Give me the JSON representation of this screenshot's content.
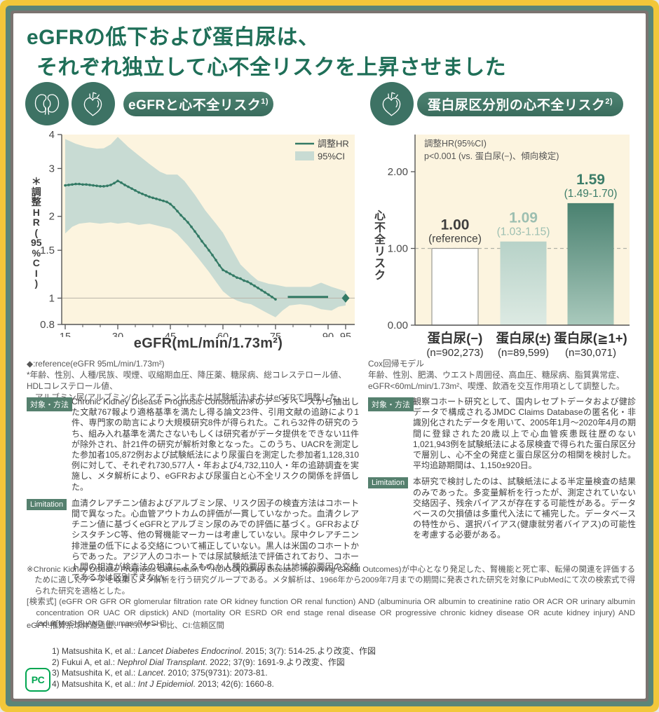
{
  "frame": {
    "yellow": "#f2c73a",
    "green": "#5b8578",
    "gray": "#7b7370",
    "background": "#ffffff"
  },
  "title": {
    "line1": "eGFRの低下および蛋白尿は、",
    "line2": "それぞれ独立して心不全リスクを上昇させました",
    "color": "#1f6f58"
  },
  "left_panel": {
    "badge_label": "eGFRと心不全リスク",
    "badge_sup": "1)",
    "footnote_lines": [
      "◆:reference(eGFR 95mL/min/1.73m²)",
      "*年齢、性別、人種/民族、喫煙、収縮期血圧、降圧薬、糖尿病、総コレステロール値、HDLコレステロール値、",
      "　アルブミン尿(アルブミン/クレアチニン比または試験紙法)またはeGFRで調整した。"
    ],
    "method_label": "対象・方法",
    "method_text": "Chronic Kidney Disease Prognosis Consortium※のデータベースから抽出した文献767報より適格基準を満たし得る論文23件、引用文献の追跡により1件、専門家の助言により大規模研究8件が得られた。これら32件の研究のうち、組み入れ基準を満たさないもしくは研究者がデータ提供をできない11件が除外され、計21件の研究が解析対象となった。このうち、UACRを測定した参加者105,872例および試験紙法により尿蛋白を測定した参加者1,128,310例に対して、それぞれ730,577人・年および4,732,110人・年の追跡調査を実施し、メタ解析により、eGFRおよび尿蛋白と心不全リスクの関係を評価した。",
    "limitation_label": "Limitation",
    "limitation_text": "血清クレアチニン値およびアルブミン尿、リスク因子の検査方法はコホート間で異なった。心血管アウトカムの評価が一貫していなかった。血清クレアチニン値に基づくeGFRとアルブミン尿のみでの評価に基づく。GFRおよびシスタチンC等、他の腎機能マーカーは考慮していない。尿中クレアチニン排泄量の低下による交絡について補正していない。黒人は米国のコホートからであった。アジア人のコホートでは尿試験紙法で評価されており、コホート間の相違が検査法の相違によるものか人種的要因または地域的要因の交絡であるかは区別できない。"
  },
  "right_panel": {
    "badge_label": "蛋白尿区分別の心不全リスク",
    "badge_sup": "2)",
    "footnote_lines": [
      "Cox回帰モデル",
      "年齢、性別、肥満、ウエスト周囲径、高血圧、糖尿病、脂質異常症、",
      "eGFR<60mL/min/1.73m²、喫煙、飲酒を交互作用項として調整した。"
    ],
    "method_label": "対象・方法",
    "method_text": "観察コホート研究として、国内レセプトデータおよび健診データで構成されるJMDC Claims Databaseの匿名化・非識別化されたデータを用いて、2005年1月〜2020年4月の期間に登録された20歳以上で心血管疾患既往歴のない1,021,943例を試験紙法による尿検査で得られた蛋白尿区分で層別し、心不全の発症と蛋白尿区分の相関を検討した。平均追跡期間は、1,150±920日。",
    "limitation_label": "Limitation",
    "limitation_text": "本研究で検討したのは、試験紙法による半定量検査の結果のみであった。多変量解析を行ったが、測定されていない交絡因子、残余バイアスが存在する可能性がある。データベースの欠損値は多重代入法にて補完した。データベースの特性から、選択バイアス(健康就労者バイアス)の可能性を考慮する必要がある。"
  },
  "notes": {
    "consortium_pre": "※Chronic Kidney Disease Prognosis Consortium",
    "consortium_sup": "3),4)",
    "consortium_post": ":KDIGO(Kidney Disease: Improving Global Outcomes)が中心となり発足した、腎機能と死亡率、転帰の関連を評価するために適したデータを収集しメタ解析を行う研究グループである。メタ解析は、1966年から2009年7月までの期間に発表された研究を対象にPubMedにて次の検索式で得られた研究を適格とした。",
    "search_formula": "[検索式] (eGFR OR GFR OR glomerular filtration rate OR kidney function OR renal function) AND (albuminuria OR albumin to creatinine ratio OR ACR OR urinary albumin concentration OR UAC OR dipstick) AND (mortality OR ESRD OR end stage renal disease OR progressive chronic kidney disease OR acute kidney injury) AND (adult[MeSH]) AND (Humans[MeSH])",
    "abbreviations": "eGFR:推算糸球体濾過量、HR:ハザード比、CI:信頼区間"
  },
  "references": [
    {
      "pre": "1) Matsushita K, et al.: ",
      "journal": "Lancet Diabetes Endocrinol",
      "post": ". 2015; 3(7): 514-25.より改変、作図"
    },
    {
      "pre": "2) Fukui A, et al.: ",
      "journal": "Nephrol Dial Transplant",
      "post": ". 2022; 37(9): 1691-9.より改変、作図"
    },
    {
      "pre": "3) Matsushita K, et al.: ",
      "journal": "Lancet",
      "post": ". 2010; 375(9731): 2073-81."
    },
    {
      "pre": "4) Matsushita K, et al.: ",
      "journal": "Int J Epidemiol",
      "post": ". 2013; 42(6): 1660-8."
    }
  ],
  "logo_text": "PC",
  "chart_data": [
    {
      "type": "line",
      "title": "eGFRと心不全リスク",
      "xlabel": "eGFR(mL/min/1.73m²)",
      "ylabel": "＊調整HR（95%CI）",
      "ylabel_chars": [
        "＊",
        "調",
        "整",
        "H",
        "R",
        "(",
        "95",
        "%",
        "C",
        "I",
        ")"
      ],
      "x_scale": "linear",
      "y_scale": "log",
      "xlim": [
        14,
        97.5
      ],
      "ylim": [
        0.8,
        4
      ],
      "xticks": [
        15,
        30,
        45,
        60,
        75,
        90,
        95
      ],
      "xticks_minor": [
        20,
        25,
        35,
        40,
        50,
        55,
        65,
        70,
        80,
        85
      ],
      "yticks": [
        0.8,
        1,
        1.5,
        2,
        3,
        4
      ],
      "legend": [
        {
          "label": "調整HR",
          "type": "line"
        },
        {
          "label": "95%CI",
          "type": "band"
        }
      ],
      "reference_line_y": 1,
      "series": [
        {
          "name": "調整HR",
          "points": [
            [
              15,
              2.6
            ],
            [
              16,
              2.61
            ],
            [
              17,
              2.62
            ],
            [
              18,
              2.63
            ],
            [
              19,
              2.63
            ],
            [
              20,
              2.62
            ],
            [
              21,
              2.62
            ],
            [
              22,
              2.61
            ],
            [
              23,
              2.6
            ],
            [
              24,
              2.59
            ],
            [
              25,
              2.58
            ],
            [
              26,
              2.58
            ],
            [
              27,
              2.59
            ],
            [
              28,
              2.61
            ],
            [
              29,
              2.65
            ],
            [
              30,
              2.7
            ],
            [
              31,
              2.66
            ],
            [
              32,
              2.61
            ],
            [
              33,
              2.57
            ],
            [
              34,
              2.53
            ],
            [
              35,
              2.49
            ],
            [
              36,
              2.45
            ],
            [
              37,
              2.42
            ],
            [
              38,
              2.39
            ],
            [
              39,
              2.36
            ],
            [
              40,
              2.34
            ],
            [
              41,
              2.32
            ],
            [
              42,
              2.3
            ],
            [
              43,
              2.28
            ],
            [
              44,
              2.26
            ],
            [
              45,
              2.22
            ],
            [
              46,
              2.16
            ],
            [
              47,
              2.09
            ],
            [
              48,
              2.02
            ],
            [
              49,
              1.96
            ],
            [
              50,
              1.9
            ],
            [
              51,
              1.83
            ],
            [
              52,
              1.76
            ],
            [
              53,
              1.69
            ],
            [
              54,
              1.62
            ],
            [
              55,
              1.56
            ],
            [
              56,
              1.5
            ],
            [
              57,
              1.44
            ],
            [
              58,
              1.38
            ],
            [
              59,
              1.32
            ],
            [
              60,
              1.27
            ],
            [
              61,
              1.25
            ],
            [
              62,
              1.23
            ],
            [
              63,
              1.21
            ],
            [
              64,
              1.19
            ],
            [
              65,
              1.18
            ],
            [
              66,
              1.16
            ],
            [
              67,
              1.15
            ],
            [
              68,
              1.13
            ],
            [
              69,
              1.11
            ],
            [
              70,
              1.09
            ],
            [
              71,
              1.07
            ],
            [
              72,
              1.05
            ],
            [
              73,
              1.03
            ],
            [
              74,
              1.01
            ],
            [
              75,
              0.99
            ]
          ]
        },
        {
          "name": "調整HR(flat segment)",
          "points": [
            [
              78.5,
              1.01
            ],
            [
              90,
              1.01
            ]
          ]
        }
      ],
      "ci_upper": [
        [
          15,
          3.85
        ],
        [
          18,
          3.7
        ],
        [
          21,
          3.6
        ],
        [
          24,
          3.55
        ],
        [
          26,
          3.56
        ],
        [
          28,
          3.68
        ],
        [
          30,
          3.92
        ],
        [
          33,
          3.6
        ],
        [
          36,
          3.35
        ],
        [
          39,
          3.12
        ],
        [
          42,
          2.92
        ],
        [
          44,
          2.85
        ],
        [
          47,
          2.85
        ],
        [
          49,
          2.7
        ],
        [
          52,
          2.4
        ],
        [
          55,
          2.1
        ],
        [
          58,
          1.88
        ],
        [
          60,
          1.74
        ],
        [
          63,
          1.48
        ],
        [
          65,
          1.33
        ],
        [
          68,
          1.22
        ],
        [
          70,
          1.16
        ],
        [
          73,
          1.13
        ],
        [
          75,
          1.12
        ],
        [
          78,
          1.1
        ],
        [
          82,
          1.1
        ],
        [
          85,
          1.1
        ],
        [
          88,
          1.14
        ],
        [
          91,
          1.1
        ],
        [
          95,
          1.06
        ]
      ],
      "ci_lower": [
        [
          15,
          1.73
        ],
        [
          17,
          1.83
        ],
        [
          19,
          1.88
        ],
        [
          22,
          1.9
        ],
        [
          25,
          1.88
        ],
        [
          28,
          1.9
        ],
        [
          30,
          1.88
        ],
        [
          33,
          1.9
        ],
        [
          36,
          1.86
        ],
        [
          39,
          1.88
        ],
        [
          42,
          1.84
        ],
        [
          45,
          1.8
        ],
        [
          47,
          1.72
        ],
        [
          50,
          1.56
        ],
        [
          53,
          1.4
        ],
        [
          56,
          1.25
        ],
        [
          58,
          1.15
        ],
        [
          60,
          1.06
        ],
        [
          62,
          1.01
        ],
        [
          64,
          0.98
        ],
        [
          66,
          0.96
        ],
        [
          68,
          0.95
        ],
        [
          70,
          0.92
        ],
        [
          72,
          0.89
        ],
        [
          75,
          0.85
        ],
        [
          77,
          0.9
        ],
        [
          79,
          0.94
        ],
        [
          82,
          0.95
        ],
        [
          85,
          0.94
        ],
        [
          88,
          0.91
        ],
        [
          91,
          0.9
        ],
        [
          93,
          0.93
        ],
        [
          95,
          0.94
        ]
      ],
      "reference_marker": {
        "x": 95,
        "y": 1.0,
        "shape": "diamond"
      },
      "colors": {
        "line": "#337a65",
        "band": "#c8dbd3",
        "plot_bg": "#fcf4df",
        "axis": "#555555",
        "ref_line": "#b9b4a8"
      }
    },
    {
      "type": "bar",
      "annotation_line1": "調整HR(95%CI)",
      "annotation_line2": "p<0.001 (vs. 蛋白尿(−)、傾向検定)",
      "ylabel": "心不全リスク",
      "ylabel_chars": [
        "心",
        "不",
        "全",
        "リ",
        "ス",
        "ク"
      ],
      "ylim": [
        0,
        2.48
      ],
      "ytick_labels": [
        "0.00",
        "1.00",
        "2.00"
      ],
      "ytick_values": [
        0,
        1,
        2
      ],
      "reference_line_y": 1.0,
      "categories": [
        {
          "label": "蛋白尿(−)",
          "n_label": "(n=902,273)",
          "value": 1.0,
          "value_label": "1.00",
          "ci_label": "(reference)",
          "bar_style": "white"
        },
        {
          "label": "蛋白尿(±)",
          "n_label": "(n=89,599)",
          "value": 1.09,
          "value_label": "1.09",
          "ci_label": "(1.03-1.15)",
          "bar_style": "light"
        },
        {
          "label": "蛋白尿(≧1+)",
          "n_label": "(n=30,071)",
          "value": 1.59,
          "value_label": "1.59",
          "ci_label": "(1.49-1.70)",
          "bar_style": "dark"
        }
      ],
      "colors": {
        "plot_bg": "#fcf4df",
        "axis": "#555555",
        "dashed_line": "#b1b1a6",
        "bar_white_stroke": "#9a9a93",
        "bar_light_top": "#b7d2c8",
        "bar_light_bottom": "#ddeae3",
        "bar_dark_top": "#4a8170",
        "bar_dark_bottom": "#a9c9bc",
        "label_white_bar": "#3f3f3f",
        "label_light_bar": "#9dbfb1",
        "label_dark_bar": "#3c7d69"
      }
    }
  ]
}
